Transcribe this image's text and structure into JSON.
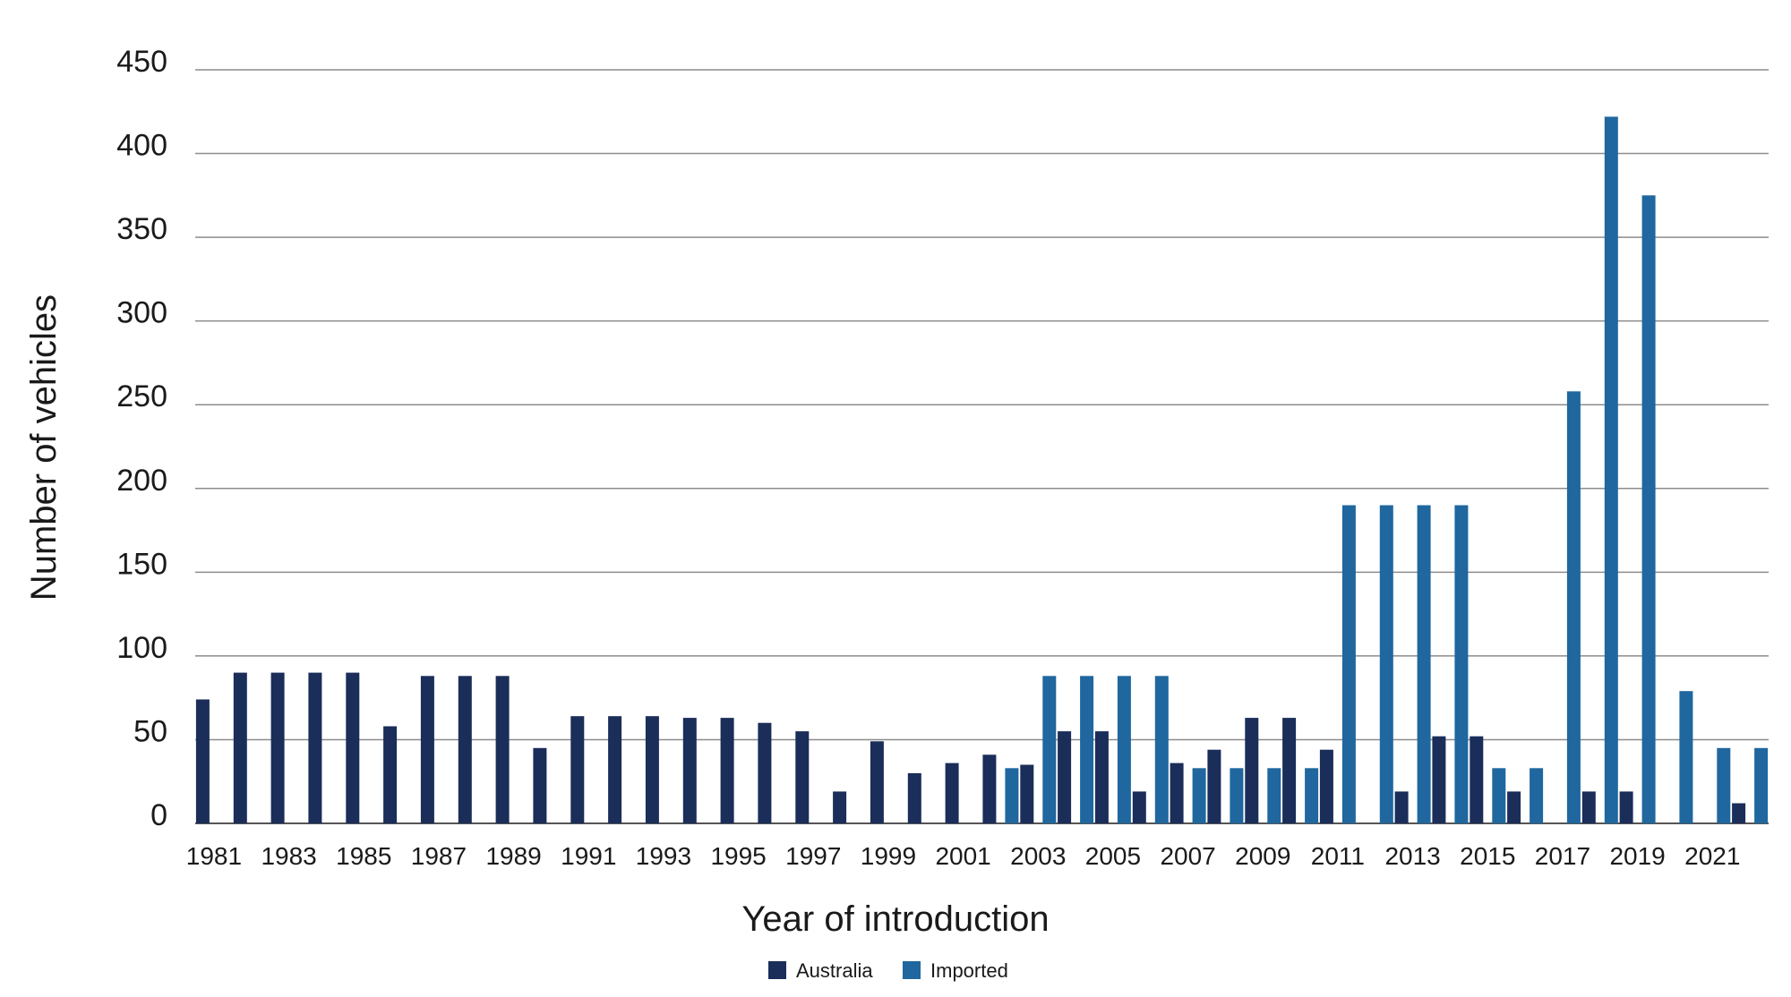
{
  "chart_data": {
    "type": "bar",
    "title": "",
    "xlabel": "Year of introduction",
    "ylabel": "Number of vehicles",
    "ylim": [
      0,
      450
    ],
    "yticks": [
      0,
      50,
      100,
      150,
      200,
      250,
      300,
      350,
      400,
      450
    ],
    "grid": true,
    "legend_position": "bottom-center",
    "x": [
      1981,
      1982,
      1983,
      1984,
      1985,
      1986,
      1987,
      1988,
      1989,
      1990,
      1991,
      1992,
      1993,
      1994,
      1995,
      1996,
      1997,
      1998,
      1999,
      2000,
      2001,
      2002,
      2003,
      2004,
      2005,
      2006,
      2007,
      2008,
      2009,
      2010,
      2011,
      2012,
      2013,
      2014,
      2015,
      2016,
      2017,
      2018,
      2019,
      2020,
      2021,
      2022
    ],
    "xtick_labels": [
      "1981",
      "1983",
      "1985",
      "1987",
      "1989",
      "1991",
      "1993",
      "1995",
      "1997",
      "1999",
      "2001",
      "2003",
      "2005",
      "2007",
      "2009",
      "2011",
      "2013",
      "2015",
      "2017",
      "2019",
      "2021"
    ],
    "series": [
      {
        "name": "Australia",
        "color": "#1b2d59",
        "values": [
          74,
          90,
          90,
          90,
          90,
          58,
          88,
          88,
          88,
          45,
          64,
          64,
          64,
          63,
          63,
          60,
          55,
          19,
          49,
          30,
          36,
          41,
          35,
          55,
          55,
          19,
          36,
          44,
          63,
          63,
          44,
          0,
          19,
          52,
          52,
          19,
          0,
          19,
          19,
          0,
          0,
          12
        ]
      },
      {
        "name": "Imported",
        "color": "#1f679e",
        "values": [
          0,
          0,
          0,
          0,
          0,
          0,
          0,
          0,
          0,
          0,
          0,
          0,
          0,
          0,
          0,
          0,
          0,
          0,
          0,
          0,
          0,
          33,
          88,
          88,
          88,
          88,
          33,
          33,
          33,
          33,
          190,
          190,
          190,
          190,
          33,
          33,
          258,
          422,
          375,
          79,
          45,
          45
        ]
      }
    ]
  }
}
